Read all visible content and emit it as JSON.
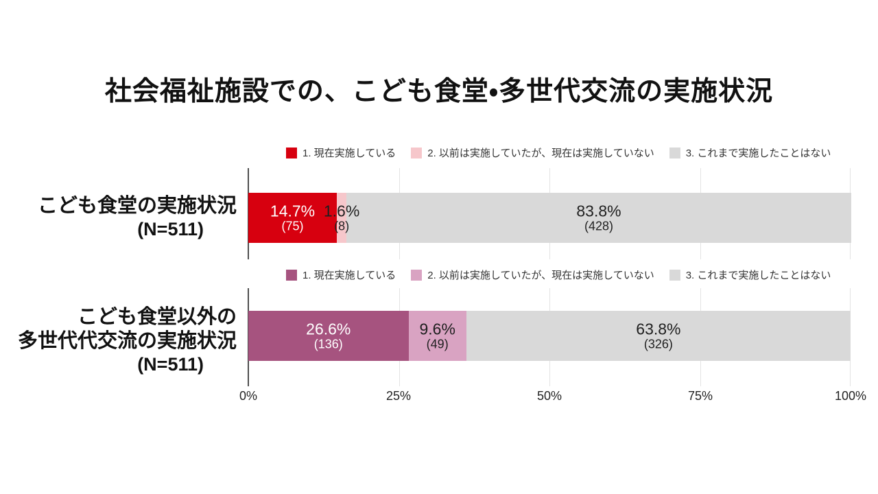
{
  "title": "社会福祉施設での、こども食堂・多世代交流の実施状況",
  "axis": {
    "ticks": [
      "0%",
      "25%",
      "50%",
      "75%",
      "100%"
    ],
    "range": [
      0,
      100
    ]
  },
  "chart_data": [
    {
      "type": "bar",
      "orientation": "horizontal-stacked",
      "category_lines": [
        "こども食堂の実施状況"
      ],
      "n_label": "(N=511)",
      "n": 511,
      "xlim": [
        0,
        100
      ],
      "legend_position": "top",
      "segments": [
        {
          "label": "1. 現在実施している",
          "value_pct": 14.7,
          "pct_text": "14.7%",
          "count": 75,
          "count_text": "(75)",
          "color": "#D7000F",
          "text_color": "#FFFFFF"
        },
        {
          "label": "2. 以前は実施していたが、現在は実施していない",
          "value_pct": 1.6,
          "pct_text": "1.6%",
          "count": 8,
          "count_text": "(8)",
          "color": "#F6C7CB",
          "text_color": "#1F1F1F"
        },
        {
          "label": "3. これまで実施したことはない",
          "value_pct": 83.8,
          "pct_text": "83.8%",
          "count": 428,
          "count_text": "(428)",
          "color": "#D9D9D9",
          "text_color": "#1F1F1F"
        }
      ]
    },
    {
      "type": "bar",
      "orientation": "horizontal-stacked",
      "category_lines": [
        "こども食堂以外の",
        "多世代代交流の実施状況"
      ],
      "n_label": "(N=511)",
      "n": 511,
      "xlim": [
        0,
        100
      ],
      "legend_position": "top",
      "segments": [
        {
          "label": "1. 現在実施している",
          "value_pct": 26.6,
          "pct_text": "26.6%",
          "count": 136,
          "count_text": "(136)",
          "color": "#A6537F",
          "text_color": "#FFFFFF"
        },
        {
          "label": "2. 以前は実施していたが、現在は実施していない",
          "value_pct": 9.6,
          "pct_text": "9.6%",
          "count": 49,
          "count_text": "(49)",
          "color": "#D9A3C2",
          "text_color": "#1F1F1F"
        },
        {
          "label": "3. これまで実施したことはない",
          "value_pct": 63.8,
          "pct_text": "63.8%",
          "count": 326,
          "count_text": "(326)",
          "color": "#D9D9D9",
          "text_color": "#1F1F1F"
        }
      ]
    }
  ]
}
